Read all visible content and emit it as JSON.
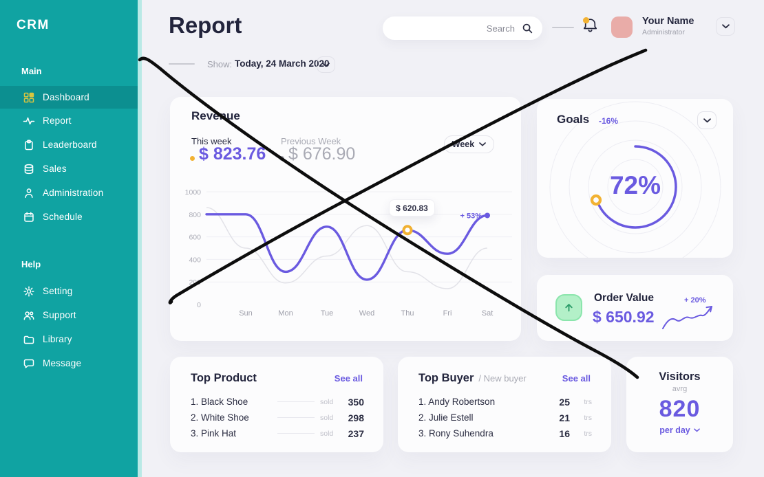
{
  "app": {
    "logo": "CRM"
  },
  "sidebar": {
    "sections": [
      {
        "label": "Main",
        "items": [
          {
            "icon": "dashboard-grid-icon",
            "label": "Dashboard",
            "active": true
          },
          {
            "icon": "report-pulse-icon",
            "label": "Report",
            "active": false
          },
          {
            "icon": "leaderboard-clipboard-icon",
            "label": "Leaderboard",
            "active": false
          },
          {
            "icon": "sales-database-icon",
            "label": "Sales",
            "active": false
          },
          {
            "icon": "administration-user-icon",
            "label": "Administration",
            "active": false
          },
          {
            "icon": "schedule-calendar-icon",
            "label": "Schedule",
            "active": false
          }
        ]
      },
      {
        "label": "Help",
        "items": [
          {
            "icon": "setting-gear-icon",
            "label": "Setting",
            "active": false
          },
          {
            "icon": "support-users-icon",
            "label": "Support",
            "active": false
          },
          {
            "icon": "library-folder-icon",
            "label": "Library",
            "active": false
          },
          {
            "icon": "message-chat-icon",
            "label": "Message",
            "active": false
          }
        ]
      }
    ]
  },
  "header": {
    "title": "Report",
    "search_placeholder": "Search",
    "user": {
      "name": "Your Name",
      "role": "Administrator"
    }
  },
  "filter": {
    "label": "Show:",
    "value": "Today, 24 March 2020"
  },
  "revenue": {
    "title": "Revenue",
    "this_week": {
      "label": "This week",
      "value": "$ 823.76"
    },
    "previous_week": {
      "label": "Previous Week",
      "value": "$ 676.90"
    },
    "period_selector": "Week",
    "tooltip": "$ 620.83",
    "end_delta": "+ 53%"
  },
  "chart_data": {
    "type": "line",
    "title": "Revenue this week vs previous week",
    "categories": [
      "Sun",
      "Mon",
      "Tue",
      "Wed",
      "Thu",
      "Fri",
      "Sat"
    ],
    "series": [
      {
        "name": "This week",
        "lead": 800,
        "values": [
          800,
          290,
          690,
          220,
          660,
          450,
          790
        ],
        "color": "#6A5AE0"
      },
      {
        "name": "Previous Week",
        "lead": 860,
        "values": [
          500,
          190,
          430,
          700,
          290,
          140,
          500
        ],
        "color": "#E2E2E8"
      }
    ],
    "ylim": [
      0,
      1000
    ],
    "yticks": [
      0,
      200,
      400,
      600,
      800,
      1000
    ],
    "grid": true,
    "legend_position": "none",
    "annotations": [
      {
        "type": "tooltip",
        "label": "$ 620.83",
        "category": "Thu",
        "value": 660
      },
      {
        "type": "end-label",
        "label": "+ 53%",
        "category": "Sat",
        "value": 790
      }
    ]
  },
  "goals": {
    "title": "Goals",
    "delta": "-16%",
    "percent": "72%",
    "percent_value": 72
  },
  "order_value": {
    "title": "Order Value",
    "value": "$ 650.92",
    "delta": "+ 20%"
  },
  "top_product": {
    "title": "Top Product",
    "see_all": "See all",
    "sold_label": "sold",
    "items": [
      {
        "rank": "1.",
        "name": "Black Shoe",
        "sold": "350"
      },
      {
        "rank": "2.",
        "name": "White Shoe",
        "sold": "298"
      },
      {
        "rank": "3.",
        "name": "Pink Hat",
        "sold": "237"
      }
    ]
  },
  "top_buyer": {
    "title": "Top Buyer",
    "subtitle": "/ New buyer",
    "see_all": "See all",
    "unit": "trs",
    "items": [
      {
        "rank": "1.",
        "name": "Andy Robertson",
        "count": "25"
      },
      {
        "rank": "2.",
        "name": "Julie Estell",
        "count": "21"
      },
      {
        "rank": "3.",
        "name": "Rony Suhendra",
        "count": "16"
      }
    ]
  },
  "visitors": {
    "title": "Visitors",
    "avg_label": "avrg",
    "value": "820",
    "per_label": "per day"
  },
  "colors": {
    "sidebar_teal": "#10A3A2",
    "sidebar_active": "#0C8F90",
    "active_icon_yellow": "#D9C63F",
    "accent_purple": "#6A5AE0",
    "accent_yellow": "#F2B233",
    "avatar_pink": "#E9ACA8",
    "green_light": "#B3F0C8",
    "green_arrow": "#2E9E6B",
    "text_dark": "#22243C",
    "text_gray": "#9FA0AB",
    "annotation_black": "#0D0D0D",
    "background": "#F1F1F6",
    "card": "#FCFCFD"
  }
}
